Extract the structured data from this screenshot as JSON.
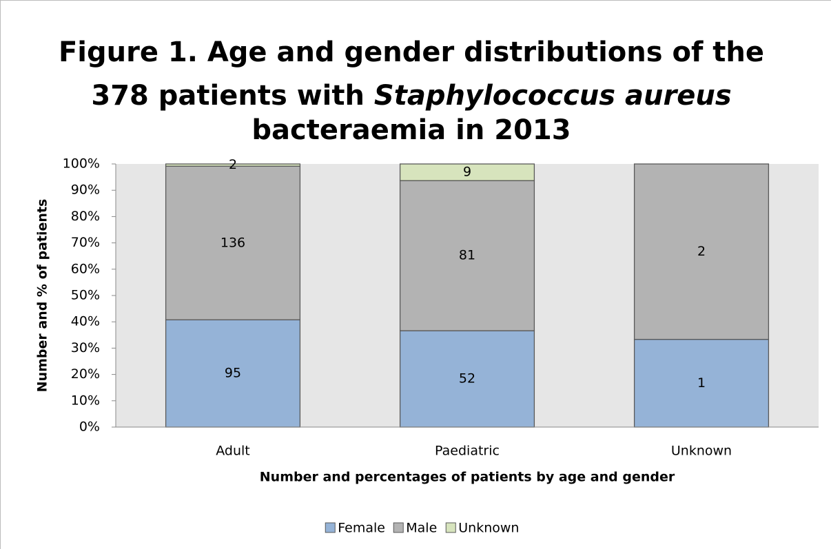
{
  "chart_data": {
    "type": "bar",
    "stacked": "percent",
    "title": [
      [
        "Figure 1. Age and gender distributions of the"
      ],
      [
        "378 patients with ",
        "Staphylococcus aureus"
      ],
      [
        "bacteraemia in 2013"
      ]
    ],
    "y_label": "Number and % of patients",
    "x_label": "Number and percentages of patients by age and gender",
    "categories": [
      "Adult",
      "Paediatric",
      "Unknown"
    ],
    "series": [
      {
        "name": "Female",
        "color": "#95b3d7",
        "values": [
          95,
          52,
          1
        ]
      },
      {
        "name": "Male",
        "color": "#b3b3b3",
        "values": [
          136,
          81,
          2
        ]
      },
      {
        "name": "Unknown",
        "color": "#d7e4bd",
        "values": [
          2,
          9,
          null
        ]
      }
    ],
    "ylim": [
      0,
      100
    ],
    "yticks": [
      {
        "value": 0,
        "label": "0%"
      },
      {
        "value": 10,
        "label": "10%"
      },
      {
        "value": 20,
        "label": "20%"
      },
      {
        "value": 30,
        "label": "30%"
      },
      {
        "value": 40,
        "label": "40%"
      },
      {
        "value": 50,
        "label": "50%"
      },
      {
        "value": 60,
        "label": "60%"
      },
      {
        "value": 70,
        "label": "70%"
      },
      {
        "value": 80,
        "label": "80%"
      },
      {
        "value": 90,
        "label": "90%"
      },
      {
        "value": 100,
        "label": "100%"
      }
    ],
    "legend": "bottom"
  }
}
